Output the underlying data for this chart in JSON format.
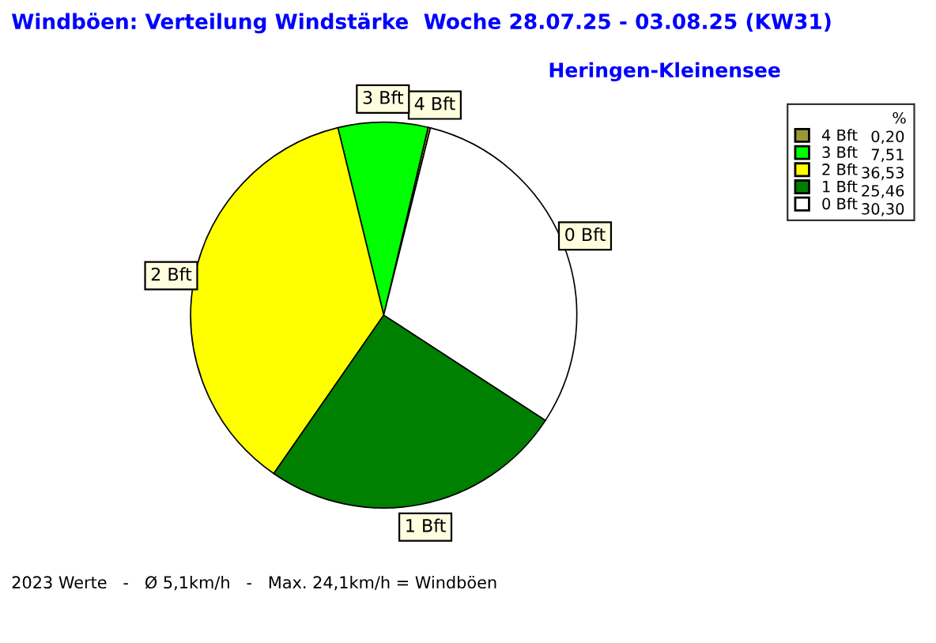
{
  "chart_data": {
    "type": "pie",
    "title": "Windböen: Verteilung Windstärke  Woche 28.07.25 - 03.08.25 (KW31)",
    "subtitle": "Heringen-Kleinensee",
    "categories": [
      "4 Bft",
      "3 Bft",
      "2 Bft",
      "1 Bft",
      "0 Bft"
    ],
    "values": [
      0.2,
      7.51,
      36.53,
      25.46,
      30.3
    ],
    "value_labels": [
      "0,20",
      "7,51",
      "36,53",
      "25,46",
      "30,30"
    ],
    "colors": [
      "#999933",
      "#00ff00",
      "#ffff00",
      "#008000",
      "#ffffff"
    ],
    "legend": "top right",
    "legend_title": "%",
    "annotations": [
      "2023 Werte   -   Ø 5,1km/h   -   Max. 24,1km/h = Windböen"
    ]
  }
}
